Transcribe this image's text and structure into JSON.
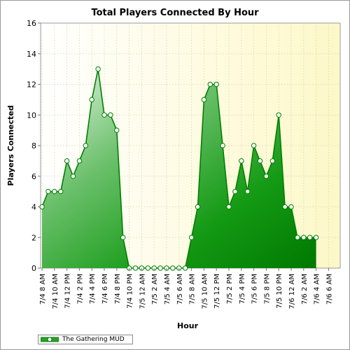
{
  "chart_data": {
    "type": "area",
    "title": "Total Players Connected By Hour",
    "xlabel": "Hour",
    "ylabel": "Players Connected",
    "ylim": [
      0,
      16
    ],
    "yticks": [
      0,
      2,
      4,
      6,
      8,
      10,
      12,
      14,
      16
    ],
    "x_tick_labels": [
      "7/4 8 AM",
      "7/4 10 AM",
      "7/4 12 PM",
      "7/4 2 PM",
      "7/4 4 PM",
      "7/4 6 PM",
      "7/4 8 PM",
      "7/4 10 PM",
      "7/5 12 AM",
      "7/5 2 AM",
      "7/5 4 AM",
      "7/5 6 AM",
      "7/5 8 AM",
      "7/5 10 AM",
      "7/5 12 PM",
      "7/5 2 PM",
      "7/5 4 PM",
      "7/5 6 PM",
      "7/5 8 PM",
      "7/5 10 PM",
      "7/6 12 AM",
      "7/6 2 AM",
      "7/6 4 AM",
      "7/6 6 AM"
    ],
    "grid": true,
    "legend_position": "bottom-left",
    "series": [
      {
        "name": "The Gathering MUD",
        "color": "#008000",
        "values": [
          4,
          5,
          5,
          5,
          7,
          6,
          7,
          8,
          11,
          13,
          10,
          10,
          9,
          2,
          0,
          0,
          0,
          0,
          0,
          0,
          0,
          0,
          0,
          0,
          2,
          4,
          11,
          12,
          12,
          8,
          4,
          5,
          7,
          5,
          8,
          7,
          6,
          7,
          10,
          4,
          4,
          2,
          2,
          2,
          2
        ]
      }
    ]
  }
}
